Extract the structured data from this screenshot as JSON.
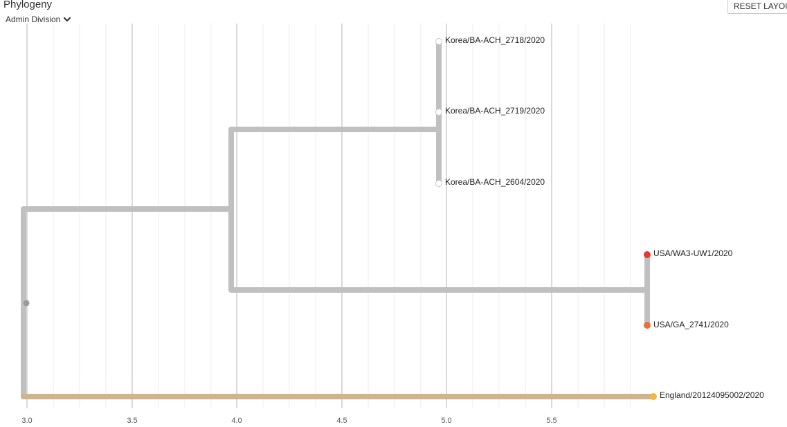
{
  "header": {
    "title": "Phylogeny",
    "color_by": "Admin Division",
    "reset_label": "RESET LAYOUT"
  },
  "axis": {
    "ticks": [
      "3.0",
      "3.5",
      "4.0",
      "4.5",
      "5.0",
      "5.5"
    ]
  },
  "tips": [
    {
      "name": "Korea/BA-ACH_2718/2020",
      "color": "#ffffff"
    },
    {
      "name": "Korea/BA-ACH_2719/2020",
      "color": "#ffffff"
    },
    {
      "name": "Korea/BA-ACH_2604/2020",
      "color": "#ffffff"
    },
    {
      "name": "USA/WA3-UW1/2020",
      "color": "#e7372f"
    },
    {
      "name": "USA/GA_2741/2020",
      "color": "#f06a3a"
    },
    {
      "name": "England/20124095002/2020",
      "color": "#f0b93c"
    }
  ],
  "colors": {
    "branch": "#c0c0c0",
    "england_branch": "#d1b38c",
    "grid_major": "#dcdcdc",
    "grid_minor": "#eeeeee"
  }
}
